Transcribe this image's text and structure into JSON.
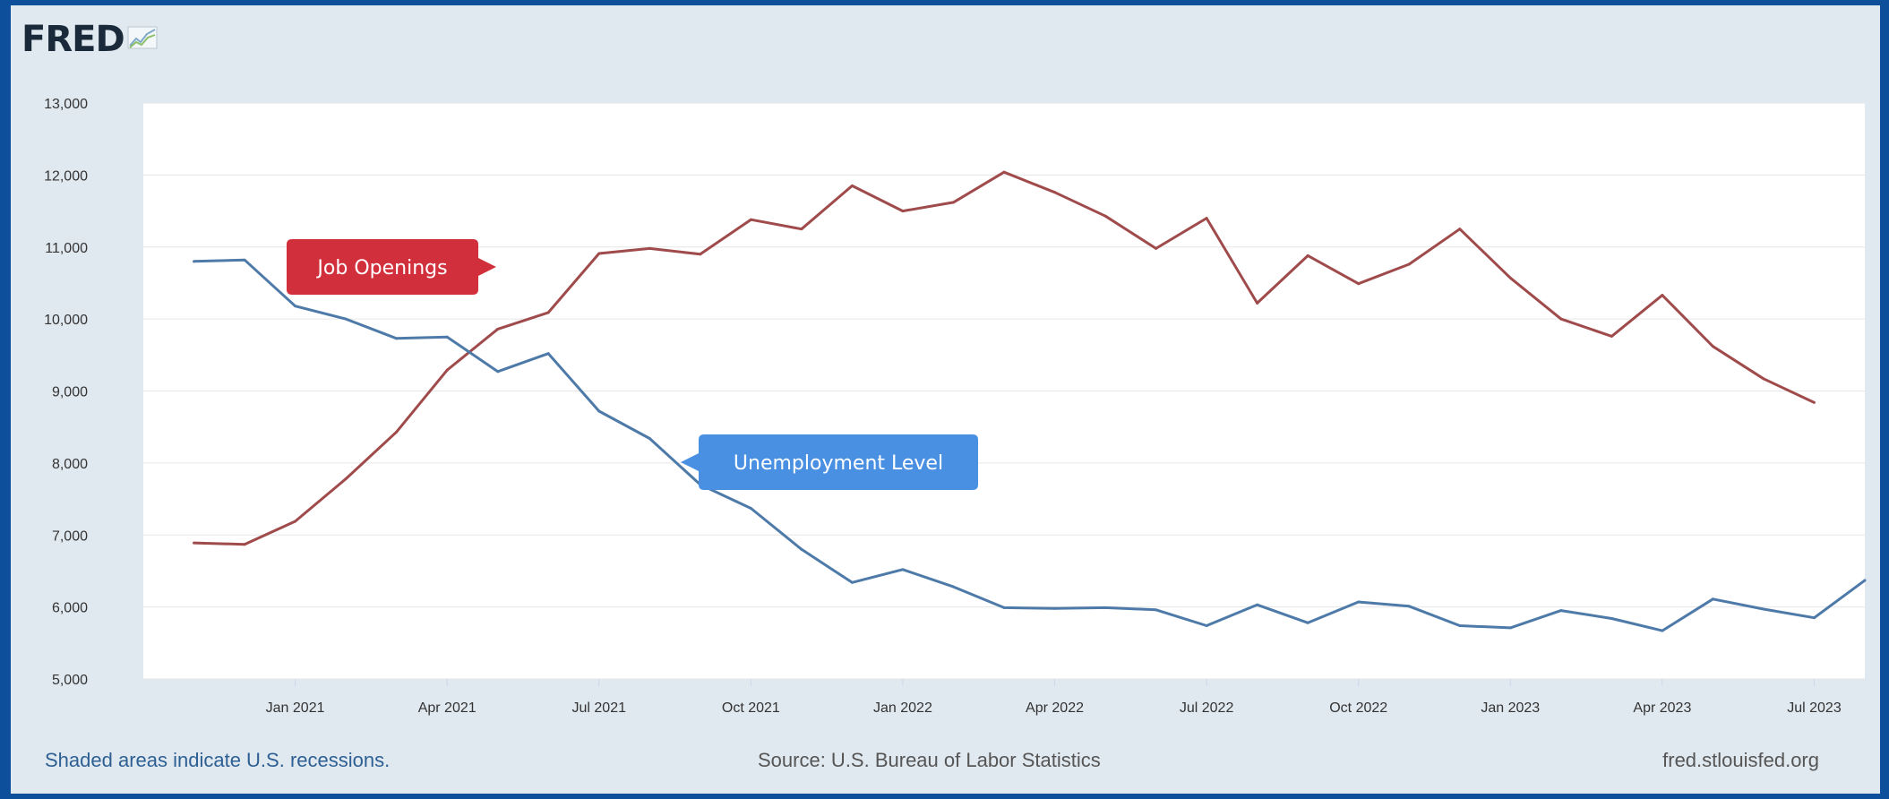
{
  "logo": {
    "text": "FRED",
    "icon": "chart-line-icon"
  },
  "chart_data": {
    "type": "line",
    "x": [
      "2020-11",
      "2020-12",
      "2021-01",
      "2021-02",
      "2021-03",
      "2021-04",
      "2021-05",
      "2021-06",
      "2021-07",
      "2021-08",
      "2021-09",
      "2021-10",
      "2021-11",
      "2021-12",
      "2022-01",
      "2022-02",
      "2022-03",
      "2022-04",
      "2022-05",
      "2022-06",
      "2022-07",
      "2022-08",
      "2022-09",
      "2022-10",
      "2022-11",
      "2022-12",
      "2023-01",
      "2023-02",
      "2023-03",
      "2023-04",
      "2023-05",
      "2023-06",
      "2023-07",
      "2023-08"
    ],
    "series": [
      {
        "name": "Job Openings",
        "color": "#a04b4b",
        "values": [
          6890,
          6870,
          7190,
          7780,
          8430,
          9290,
          9860,
          10090,
          10910,
          10980,
          10900,
          11380,
          11250,
          11850,
          11500,
          11620,
          12040,
          11760,
          11430,
          10980,
          11400,
          10220,
          10880,
          10490,
          10760,
          11250,
          10570,
          10000,
          9760,
          10330,
          9620,
          9170,
          8840,
          null
        ]
      },
      {
        "name": "Unemployment Level",
        "color": "#4d7aa8",
        "values": [
          10800,
          10820,
          10180,
          10000,
          9730,
          9750,
          9270,
          9520,
          8720,
          8340,
          7700,
          7370,
          6800,
          6340,
          6520,
          6280,
          5990,
          5980,
          5990,
          5960,
          5740,
          6030,
          5780,
          6070,
          6010,
          5740,
          5710,
          5950,
          5840,
          5670,
          6110,
          5970,
          5850,
          6370
        ]
      }
    ],
    "y_ticks": [
      "13,000",
      "12,000",
      "11,000",
      "10,000",
      "9,000",
      "8,000",
      "7,000",
      "6,000",
      "5,000"
    ],
    "x_ticks": [
      "Jan 2021",
      "Apr 2021",
      "Jul 2021",
      "Oct 2021",
      "Jan 2022",
      "Apr 2022",
      "Jul 2022",
      "Oct 2022",
      "Jan 2023",
      "Apr 2023",
      "Jul 2023"
    ],
    "x_tick_dates": [
      "2021-01",
      "2021-04",
      "2021-07",
      "2021-10",
      "2022-01",
      "2022-04",
      "2022-07",
      "2022-10",
      "2023-01",
      "2023-04",
      "2023-07"
    ],
    "ylim": [
      5000,
      13000
    ],
    "xlim": [
      "2020-10",
      "2023-08"
    ],
    "grid": true,
    "labels": [
      {
        "text": "Job Openings",
        "color": "#d22f3c",
        "series": "Job Openings"
      },
      {
        "text": "Unemployment Level",
        "color": "#4a90e2",
        "series": "Unemployment Level"
      }
    ]
  },
  "footer": {
    "recession_note": "Shaded areas indicate U.S. recessions.",
    "source": "Source: U.S. Bureau of Labor Statistics",
    "site": "fred.stlouisfed.org"
  }
}
